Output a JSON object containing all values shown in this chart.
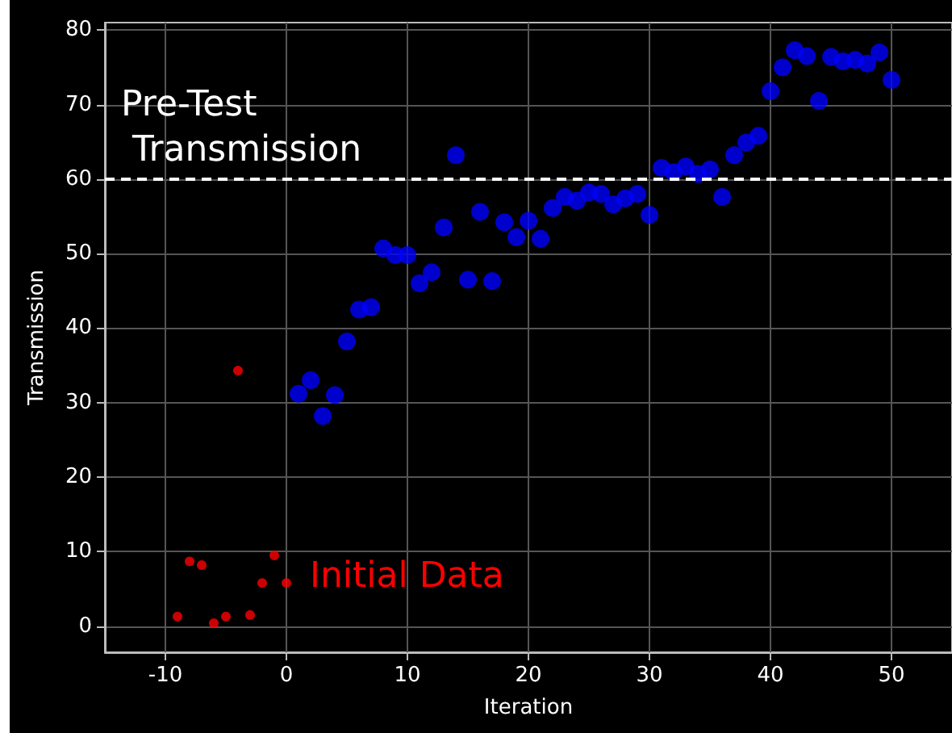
{
  "chart_data": {
    "type": "scatter",
    "xlabel": "Iteration",
    "ylabel": "Transmission",
    "xlim": [
      -15,
      55
    ],
    "xticks": [
      -10,
      0,
      10,
      20,
      30,
      40,
      50
    ],
    "ylim": [
      -3.5,
      81
    ],
    "yticks": [
      0,
      10,
      20,
      30,
      40,
      50,
      60,
      70,
      80
    ],
    "grid": true,
    "marker": "circle",
    "series": [
      {
        "color": "#ff0000",
        "x": [
          -9,
          -8,
          -7,
          -6,
          -5,
          -4,
          -3,
          -2,
          -1,
          0
        ],
        "values": [
          1.3,
          8.7,
          8.2,
          0.4,
          1.3,
          34.3,
          1.5,
          5.8,
          9.5,
          5.8
        ]
      },
      {
        "color": "#0000ff",
        "x": [
          1,
          2,
          3,
          4,
          5,
          6,
          7,
          8,
          9,
          10,
          11,
          12,
          13,
          14,
          15,
          16,
          17,
          18,
          19,
          20,
          21,
          22,
          23,
          24,
          25,
          26,
          27,
          28,
          29,
          30,
          31,
          32,
          33,
          34,
          35,
          36,
          37,
          38,
          39,
          40,
          41,
          42,
          43,
          44,
          45,
          46,
          47,
          48,
          49,
          50
        ],
        "values": [
          31.2,
          33,
          28.2,
          31,
          38.2,
          42.5,
          42.8,
          50.7,
          49.8,
          49.8,
          46,
          47.5,
          53.5,
          63.2,
          46.5,
          55.6,
          46.3,
          54.2,
          52.2,
          54.4,
          52,
          56.1,
          57.6,
          57.1,
          58.2,
          58,
          56.6,
          57.4,
          58,
          55.2,
          61.5,
          60.9,
          61.7,
          60.7,
          61.3,
          57.6,
          63.2,
          64.9,
          65.8,
          71.8,
          75,
          77.3,
          76.5,
          70.5,
          76.4,
          75.8,
          76,
          75.5,
          77,
          73.3
        ]
      }
    ],
    "ref_lines": [
      {
        "axis": "y",
        "value": 60,
        "label": "Pre-Test\n Transmission",
        "color": "#ffffff",
        "line_style": "dashed"
      }
    ],
    "annotations": [
      "Initial Data"
    ]
  }
}
